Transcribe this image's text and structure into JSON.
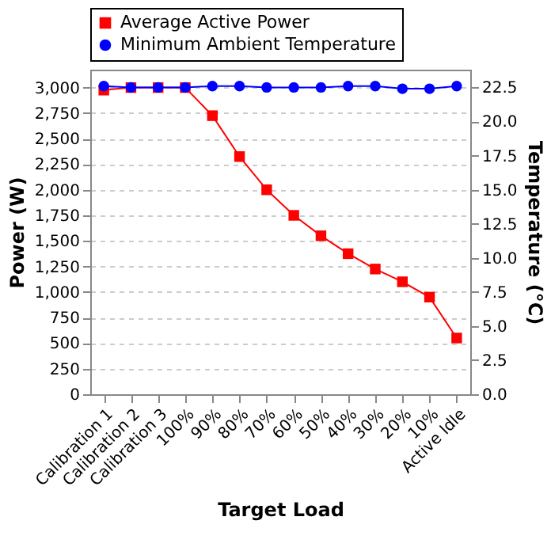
{
  "chart_data": {
    "type": "line",
    "xlabel": "Target Load",
    "ylabel": "Power (W)",
    "y2label": "Temperature  (°C)",
    "categories": [
      "Calibration 1",
      "Calibration 2",
      "Calibration 3",
      "100%",
      "90%",
      "80%",
      "70%",
      "60%",
      "50%",
      "40%",
      "30%",
      "20%",
      "10%",
      "Active Idle"
    ],
    "series": [
      {
        "name": "Average Active Power",
        "color": "#ff0000",
        "marker": "square",
        "values": [
          2975,
          3000,
          3000,
          3000,
          2725,
          2325,
          2000,
          1750,
          1550,
          1375,
          1225,
          1100,
          950,
          550
        ]
      },
      {
        "name": "Minimum Ambient Temperature",
        "color": "#0000ff",
        "marker": "circle",
        "axis": "y2",
        "values": [
          22.6,
          22.5,
          22.5,
          22.5,
          22.6,
          22.6,
          22.5,
          22.5,
          22.5,
          22.6,
          22.6,
          22.4,
          22.4,
          22.6
        ]
      }
    ],
    "ylim": [
      0,
      3175
    ],
    "yticks": [
      0,
      250,
      500,
      750,
      {
        "value": 1000,
        "label": "1,000"
      },
      {
        "value": 1250,
        "label": "1,250"
      },
      {
        "value": 1500,
        "label": "1,500"
      },
      {
        "value": 1750,
        "label": "1,750"
      },
      {
        "value": 2000,
        "label": "2,000"
      },
      {
        "value": 2250,
        "label": "2,250"
      },
      {
        "value": 2500,
        "label": "2,500"
      },
      {
        "value": 2750,
        "label": "2,750"
      },
      {
        "value": 3000,
        "label": "3,000"
      }
    ],
    "y2lim": [
      0,
      23.8
    ],
    "y2ticks": [
      {
        "value": 0,
        "label": "0.0"
      },
      2.5,
      {
        "value": 5,
        "label": "5.0"
      },
      7.5,
      {
        "value": 10,
        "label": "10.0"
      },
      12.5,
      {
        "value": 15,
        "label": "15.0"
      },
      17.5,
      {
        "value": 20,
        "label": "20.0"
      },
      22.5
    ],
    "grid": "y",
    "legend": "top",
    "line_style": "solid"
  }
}
